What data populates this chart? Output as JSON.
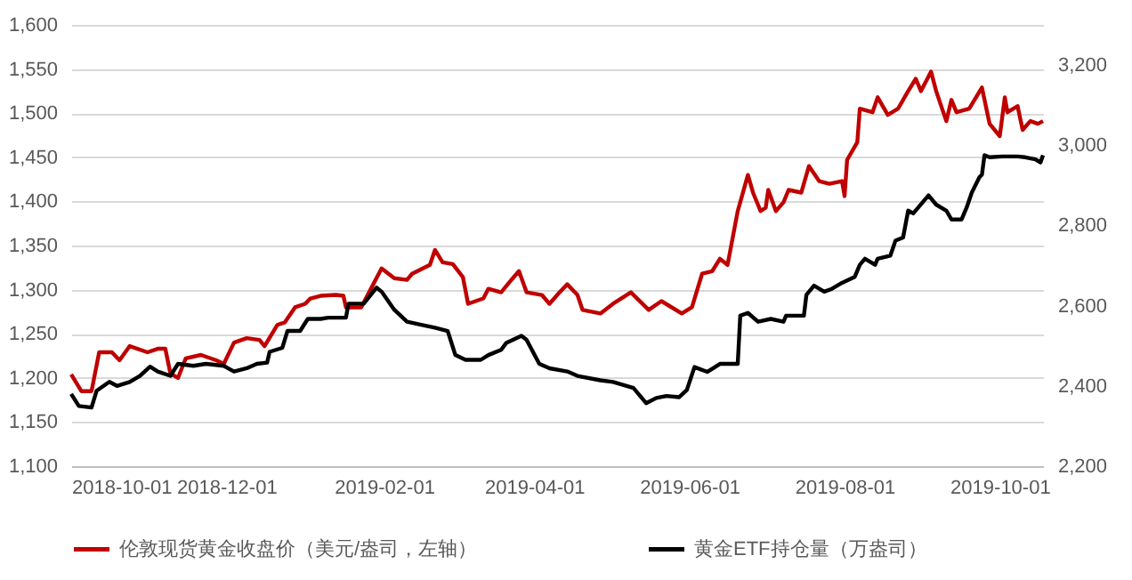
{
  "chart_data": {
    "type": "line",
    "xlim": [
      "2018-10-01",
      "2019-10-18"
    ],
    "xticks": [
      "2018-10-01",
      "2018-12-01",
      "2019-02-01",
      "2019-04-01",
      "2019-06-01",
      "2019-08-01",
      "2019-10-01"
    ],
    "ylim": [
      1100,
      1600
    ],
    "yticks": [
      {
        "value": 1100,
        "label": "1,100"
      },
      {
        "value": 1150,
        "label": "1,150"
      },
      {
        "value": 1200,
        "label": "1,200"
      },
      {
        "value": 1250,
        "label": "1,250"
      },
      {
        "value": 1300,
        "label": "1,300"
      },
      {
        "value": 1350,
        "label": "1,350"
      },
      {
        "value": 1400,
        "label": "1,400"
      },
      {
        "value": 1450,
        "label": "1,450"
      },
      {
        "value": 1500,
        "label": "1,500"
      },
      {
        "value": 1550,
        "label": "1,550"
      },
      {
        "value": 1600,
        "label": "1,600"
      }
    ],
    "y2lim": [
      2200,
      3300
    ],
    "y2ticks": [
      {
        "value": 2200,
        "label": "2,200"
      },
      {
        "value": 2400,
        "label": "2,400"
      },
      {
        "value": 2600,
        "label": "2,600"
      },
      {
        "value": 2800,
        "label": "2,800"
      },
      {
        "value": 3000,
        "label": "3,000"
      },
      {
        "value": 3200,
        "label": "3,200"
      }
    ],
    "grid": "y",
    "legend": "bottom",
    "line_style": "solid",
    "marker": "none",
    "series": [
      {
        "name": "伦敦现货黄金收盘价（美元/盎司，左轴）",
        "color": "#c00000",
        "x": [
          "2018-10-01",
          "2018-10-05",
          "2018-10-09",
          "2018-10-12",
          "2018-10-17",
          "2018-10-20",
          "2018-10-24",
          "2018-10-31",
          "2018-11-04",
          "2018-11-07",
          "2018-11-09",
          "2018-11-12",
          "2018-11-15",
          "2018-11-21",
          "2018-11-27",
          "2018-11-30",
          "2018-12-04",
          "2018-12-09",
          "2018-12-14",
          "2018-12-16",
          "2018-12-21",
          "2018-12-24",
          "2018-12-28",
          "2019-01-01",
          "2019-01-03",
          "2019-01-07",
          "2019-01-13",
          "2019-01-16",
          "2019-01-17",
          "2019-01-23",
          "2019-01-27",
          "2019-01-31",
          "2019-02-05",
          "2019-02-10",
          "2019-02-12",
          "2019-02-19",
          "2019-02-21",
          "2019-02-24",
          "2019-02-28",
          "2019-03-04",
          "2019-03-06",
          "2019-03-12",
          "2019-03-14",
          "2019-03-19",
          "2019-03-23",
          "2019-03-26",
          "2019-03-29",
          "2019-04-04",
          "2019-04-07",
          "2019-04-11",
          "2019-04-14",
          "2019-04-18",
          "2019-04-20",
          "2019-04-27",
          "2019-05-02",
          "2019-05-09",
          "2019-05-16",
          "2019-05-21",
          "2019-05-29",
          "2019-06-02",
          "2019-06-06",
          "2019-06-10",
          "2019-06-13",
          "2019-06-16",
          "2019-06-20",
          "2019-06-24",
          "2019-06-26",
          "2019-06-29",
          "2019-07-01",
          "2019-07-02",
          "2019-07-05",
          "2019-07-08",
          "2019-07-10",
          "2019-07-15",
          "2019-07-18",
          "2019-07-22",
          "2019-07-26",
          "2019-07-31",
          "2019-08-01",
          "2019-08-02",
          "2019-08-06",
          "2019-08-07",
          "2019-08-12",
          "2019-08-14",
          "2019-08-18",
          "2019-08-22",
          "2019-08-26",
          "2019-08-29",
          "2019-08-31",
          "2019-09-04",
          "2019-09-06",
          "2019-09-10",
          "2019-09-12",
          "2019-09-14",
          "2019-09-19",
          "2019-09-24",
          "2019-09-27",
          "2019-10-01",
          "2019-10-03",
          "2019-10-04",
          "2019-10-08",
          "2019-10-10",
          "2019-10-13",
          "2019-10-16",
          "2019-10-18"
        ],
        "values": [
          1204,
          1185,
          1185,
          1229,
          1229,
          1220,
          1236,
          1229,
          1233,
          1233,
          1205,
          1200,
          1222,
          1226,
          1220,
          1216,
          1240,
          1245,
          1243,
          1236,
          1260,
          1263,
          1280,
          1284,
          1290,
          1293,
          1294,
          1293,
          1280,
          1280,
          1302,
          1324,
          1313,
          1311,
          1318,
          1328,
          1345,
          1331,
          1329,
          1314,
          1284,
          1290,
          1301,
          1297,
          1311,
          1321,
          1297,
          1294,
          1284,
          1297,
          1306,
          1294,
          1277,
          1273,
          1284,
          1297,
          1277,
          1287,
          1273,
          1280,
          1318,
          1321,
          1335,
          1328,
          1389,
          1430,
          1410,
          1389,
          1393,
          1413,
          1389,
          1399,
          1413,
          1410,
          1440,
          1423,
          1420,
          1423,
          1406,
          1447,
          1467,
          1505,
          1501,
          1518,
          1498,
          1505,
          1525,
          1539,
          1525,
          1547,
          1525,
          1491,
          1515,
          1501,
          1505,
          1529,
          1488,
          1474,
          1518,
          1501,
          1508,
          1481,
          1491,
          1488,
          1491
        ]
      },
      {
        "name": "黄金ETF持仓量（万盎司）",
        "color": "#000000",
        "axis": "y2",
        "x": [
          "2018-10-01",
          "2018-10-04",
          "2018-10-09",
          "2018-10-11",
          "2018-10-16",
          "2018-10-19",
          "2018-10-24",
          "2018-10-28",
          "2018-11-01",
          "2018-11-04",
          "2018-11-09",
          "2018-11-12",
          "2018-11-18",
          "2018-11-23",
          "2018-11-30",
          "2018-12-04",
          "2018-12-09",
          "2018-12-13",
          "2018-12-17",
          "2018-12-18",
          "2018-12-23",
          "2018-12-25",
          "2018-12-30",
          "2019-01-02",
          "2019-01-07",
          "2019-01-10",
          "2019-01-17",
          "2019-01-18",
          "2019-01-24",
          "2019-01-29",
          "2019-01-31",
          "2019-02-05",
          "2019-02-10",
          "2019-02-16",
          "2019-02-21",
          "2019-02-26",
          "2019-03-01",
          "2019-03-05",
          "2019-03-11",
          "2019-03-14",
          "2019-03-19",
          "2019-03-21",
          "2019-03-27",
          "2019-03-29",
          "2019-04-03",
          "2019-04-07",
          "2019-04-14",
          "2019-04-18",
          "2019-04-27",
          "2019-05-02",
          "2019-05-10",
          "2019-05-15",
          "2019-05-19",
          "2019-05-23",
          "2019-05-28",
          "2019-05-31",
          "2019-06-03",
          "2019-06-08",
          "2019-06-13",
          "2019-06-20",
          "2019-06-21",
          "2019-06-24",
          "2019-06-28",
          "2019-07-03",
          "2019-07-08",
          "2019-07-09",
          "2019-07-16",
          "2019-07-17",
          "2019-07-20",
          "2019-07-24",
          "2019-07-27",
          "2019-07-31",
          "2019-08-05",
          "2019-08-07",
          "2019-08-09",
          "2019-08-13",
          "2019-08-14",
          "2019-08-19",
          "2019-08-21",
          "2019-08-24",
          "2019-08-26",
          "2019-08-28",
          "2019-08-30",
          "2019-09-03",
          "2019-09-06",
          "2019-09-10",
          "2019-09-12",
          "2019-09-16",
          "2019-09-18",
          "2019-09-20",
          "2019-09-23",
          "2019-09-24",
          "2019-09-25",
          "2019-09-27",
          "2019-10-02",
          "2019-10-08",
          "2019-10-11",
          "2019-10-15",
          "2019-10-17",
          "2019-10-18"
        ],
        "values": [
          2380,
          2350,
          2346,
          2388,
          2410,
          2400,
          2410,
          2425,
          2448,
          2436,
          2425,
          2455,
          2450,
          2455,
          2450,
          2436,
          2444,
          2455,
          2458,
          2485,
          2495,
          2537,
          2537,
          2567,
          2567,
          2570,
          2570,
          2605,
          2605,
          2645,
          2635,
          2590,
          2560,
          2552,
          2545,
          2537,
          2477,
          2465,
          2465,
          2477,
          2490,
          2507,
          2525,
          2515,
          2455,
          2444,
          2436,
          2425,
          2414,
          2410,
          2395,
          2357,
          2370,
          2375,
          2372,
          2390,
          2447,
          2435,
          2455,
          2455,
          2575,
          2582,
          2560,
          2567,
          2560,
          2575,
          2575,
          2627,
          2650,
          2635,
          2642,
          2657,
          2672,
          2702,
          2717,
          2702,
          2717,
          2725,
          2762,
          2770,
          2837,
          2830,
          2845,
          2875,
          2852,
          2837,
          2815,
          2815,
          2845,
          2882,
          2920,
          2927,
          2975,
          2970,
          2972,
          2972,
          2970,
          2965,
          2957,
          2975
        ]
      }
    ]
  }
}
